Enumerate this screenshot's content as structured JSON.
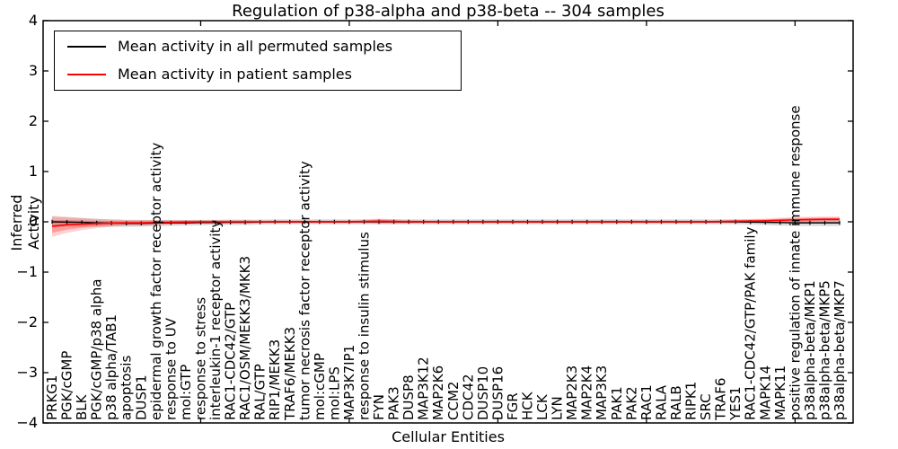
{
  "chart_data": {
    "type": "line",
    "title": "Regulation of p38-alpha and p38-beta -- 304 samples",
    "xlabel": "Cellular Entities",
    "ylabel": "Inferred Activity",
    "ylim": [
      -4,
      4
    ],
    "yticks": [
      4,
      3,
      2,
      1,
      0,
      -1,
      -2,
      -3,
      -4
    ],
    "xtick_major_indices": [
      10,
      20,
      30,
      40,
      50
    ],
    "grid": false,
    "legend_position": "upper left",
    "categories": [
      "PRKG1",
      "PGK/cGMP",
      "BLK",
      "PGK/cGMP/p38 alpha",
      "p38 alpha/TAB1",
      "apoptosis",
      "DUSP1",
      "epidermal growth factor receptor activity",
      "response to UV",
      "mol:GTP",
      "response to stress",
      "interleukin-1 receptor activity",
      "RAC1-CDC42/GTP",
      "RAC1/OSM/MEKK3/MKK3",
      "RAL/GTP",
      "RIP1/MEKK3",
      "TRAF6/MEKK3",
      "tumor necrosis factor receptor activity",
      "mol:cGMP",
      "mol:LPS",
      "MAP3K7IP1",
      "response to insulin stimulus",
      "FYN",
      "PAK3",
      "DUSP8",
      "MAP3K12",
      "MAP2K6",
      "CCM2",
      "CDC42",
      "DUSP10",
      "DUSP16",
      "FGR",
      "HCK",
      "LCK",
      "LYN",
      "MAP2K3",
      "MAP2K4",
      "MAP3K3",
      "PAK1",
      "PAK2",
      "RAC1",
      "RALA",
      "RALB",
      "RIPK1",
      "SRC",
      "TRAF6",
      "YES1",
      "RAC1-CDC42/GTP/PAK family",
      "MAPK14",
      "MAPK11",
      "positive regulation of innate immune response",
      "p38alpha-beta/MKP1",
      "p38alpha-beta/MKP5",
      "p38alpha-beta/MKP7"
    ],
    "series": [
      {
        "name": "Mean activity in all permuted samples",
        "color": "#000000",
        "band_alpha": 0.14,
        "mean": [
          0,
          -0.005,
          -0.01,
          -0.02,
          -0.025,
          -0.03,
          -0.03,
          -0.025,
          -0.02,
          -0.02,
          -0.015,
          -0.015,
          -0.01,
          -0.01,
          -0.005,
          0,
          0,
          0,
          0,
          0,
          0,
          0,
          0,
          0,
          0,
          0,
          0,
          0,
          0,
          0,
          0,
          0,
          0,
          0,
          0,
          0,
          0,
          0,
          0,
          0,
          0,
          0,
          0,
          0,
          0,
          0,
          0,
          -0.005,
          -0.01,
          -0.015,
          -0.02,
          -0.02,
          -0.02,
          -0.02
        ],
        "band": [
          0.1,
          0.09,
          0.085,
          0.08,
          0.075,
          0.07,
          0.065,
          0.06,
          0.06,
          0.055,
          0.055,
          0.055,
          0.055,
          0.055,
          0.05,
          0.05,
          0.05,
          0.05,
          0.05,
          0.05,
          0.05,
          0.05,
          0.05,
          0.05,
          0.05,
          0.05,
          0.05,
          0.05,
          0.05,
          0.05,
          0.05,
          0.05,
          0.05,
          0.05,
          0.05,
          0.05,
          0.05,
          0.05,
          0.05,
          0.05,
          0.05,
          0.05,
          0.05,
          0.05,
          0.05,
          0.05,
          0.05,
          0.05,
          0.055,
          0.06,
          0.06,
          0.065,
          0.065,
          0.065
        ]
      },
      {
        "name": "Mean activity in patient samples",
        "color": "#ff0000",
        "band_alpha": 0.18,
        "mean": [
          -0.09,
          -0.06,
          -0.045,
          -0.035,
          -0.025,
          -0.02,
          -0.02,
          -0.015,
          -0.01,
          -0.005,
          0,
          0,
          0,
          0,
          0,
          0,
          0,
          0,
          0,
          0,
          0,
          0.005,
          0.01,
          0.005,
          0,
          0,
          0,
          0,
          0,
          0,
          0,
          0,
          0,
          0,
          0,
          0,
          0,
          0,
          0,
          0,
          0,
          0,
          0,
          0,
          0,
          0.005,
          0.01,
          0.015,
          0.02,
          0.03,
          0.04,
          0.045,
          0.05,
          0.05
        ],
        "band": [
          0.21,
          0.16,
          0.12,
          0.09,
          0.07,
          0.055,
          0.06,
          0.05,
          0.045,
          0.04,
          0.035,
          0.035,
          0.035,
          0.035,
          0.03,
          0.03,
          0.03,
          0.03,
          0.03,
          0.03,
          0.03,
          0.035,
          0.055,
          0.045,
          0.035,
          0.03,
          0.03,
          0.03,
          0.03,
          0.03,
          0.03,
          0.03,
          0.03,
          0.03,
          0.03,
          0.03,
          0.03,
          0.03,
          0.03,
          0.03,
          0.03,
          0.03,
          0.03,
          0.03,
          0.03,
          0.03,
          0.035,
          0.04,
          0.045,
          0.05,
          0.055,
          0.055,
          0.055,
          0.055
        ]
      }
    ]
  }
}
